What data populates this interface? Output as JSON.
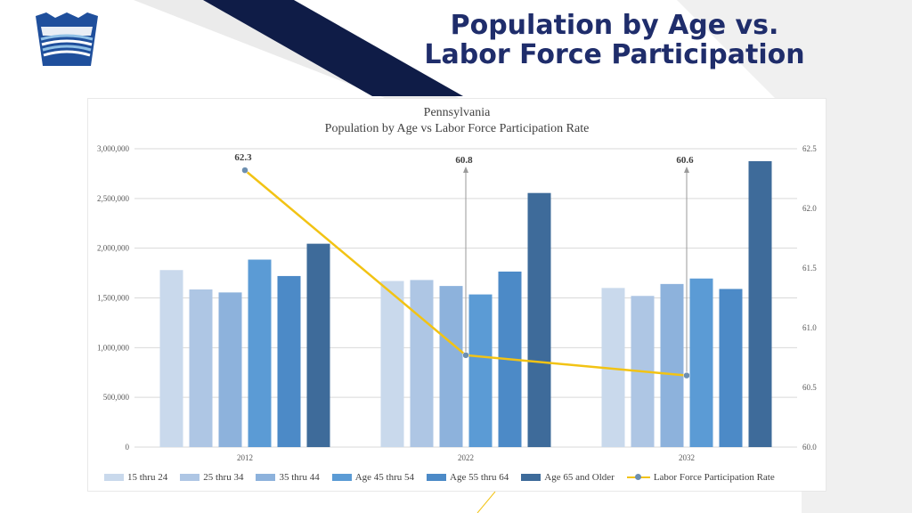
{
  "slide": {
    "title_line1": "Population by Age vs.",
    "title_line2": "Labor Force Participation",
    "logo_icon": "keystone-logo-icon"
  },
  "colors": {
    "title": "#1f2d6b",
    "band_dark": "#0f1c47",
    "band_light": "#ebebeb",
    "gridline": "#d9d9d9",
    "line": "#f2c314",
    "marker": "#6d8fb0"
  },
  "chart_data": {
    "type": "bar",
    "title": "Pennsylvania",
    "subtitle": "Population by Age vs Labor Force Participation Rate",
    "categories": [
      "2012",
      "2022",
      "2032"
    ],
    "series": [
      {
        "name": "15 thru 24",
        "color": "#c9d9ec",
        "values": [
          1780000,
          1670000,
          1600000
        ]
      },
      {
        "name": "25 thru 34",
        "color": "#aec6e4",
        "values": [
          1585000,
          1680000,
          1520000
        ]
      },
      {
        "name": "35 thru 44",
        "color": "#8db2dc",
        "values": [
          1555000,
          1620000,
          1640000
        ]
      },
      {
        "name": "Age 45 thru 54",
        "color": "#5b9bd5",
        "values": [
          1885000,
          1535000,
          1695000
        ]
      },
      {
        "name": "Age 55 thru 64",
        "color": "#4c8ac7",
        "values": [
          1720000,
          1765000,
          1590000
        ]
      },
      {
        "name": "Age 65 and Older",
        "color": "#3e6b9a",
        "values": [
          2045000,
          2555000,
          2875000
        ]
      }
    ],
    "y_axis": {
      "min": 0,
      "max": 3000000,
      "ticks": [
        "3,000,000",
        "2,500,000",
        "2,000,000",
        "1,500,000",
        "1,000,000",
        "500,000",
        "0"
      ],
      "tick_values": [
        3000000,
        2500000,
        2000000,
        1500000,
        1000000,
        500000,
        0
      ]
    },
    "y2_axis": {
      "min": 60.0,
      "max": 62.5,
      "ticks": [
        "62.5",
        "62.0",
        "61.5",
        "61.0",
        "60.5",
        "60.0"
      ],
      "tick_values": [
        62.5,
        62.0,
        61.5,
        61.0,
        60.5,
        60.0
      ]
    },
    "line": {
      "name": "Labor Force Participation Rate",
      "values": [
        62.32,
        60.77,
        60.6
      ],
      "labels": [
        "62.3",
        "60.8",
        "60.6"
      ]
    },
    "grid": true,
    "legend_position": "bottom"
  }
}
